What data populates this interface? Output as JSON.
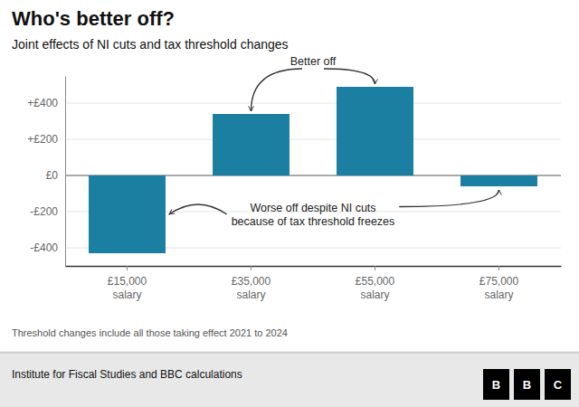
{
  "chart_data": {
    "type": "bar",
    "title": "Who's better off?",
    "subtitle": "Joint effects of NI cuts and tax threshold changes",
    "categories": [
      "£15,000\nsalary",
      "£35,000\nsalary",
      "£55,000\nsalary",
      "£75,000\nsalary"
    ],
    "values": [
      -430,
      340,
      490,
      -60
    ],
    "color": "#1a7fa0",
    "ylim": [
      -500,
      550
    ],
    "yticks": [
      {
        "value": -400,
        "label": "-£400"
      },
      {
        "value": -200,
        "label": "-£200"
      },
      {
        "value": 0,
        "label": "£0"
      },
      {
        "value": 200,
        "label": "+£200"
      },
      {
        "value": 400,
        "label": "+£400"
      }
    ],
    "grid": true,
    "annotations": [
      "Better off",
      "Worse off despite NI cuts\nbecause of tax threshold freezes"
    ],
    "footnote": "Threshold changes include all those taking effect 2021 to 2024",
    "source": "Institute for Fiscal Studies and BBC calculations",
    "logo": [
      "B",
      "B",
      "C"
    ]
  }
}
